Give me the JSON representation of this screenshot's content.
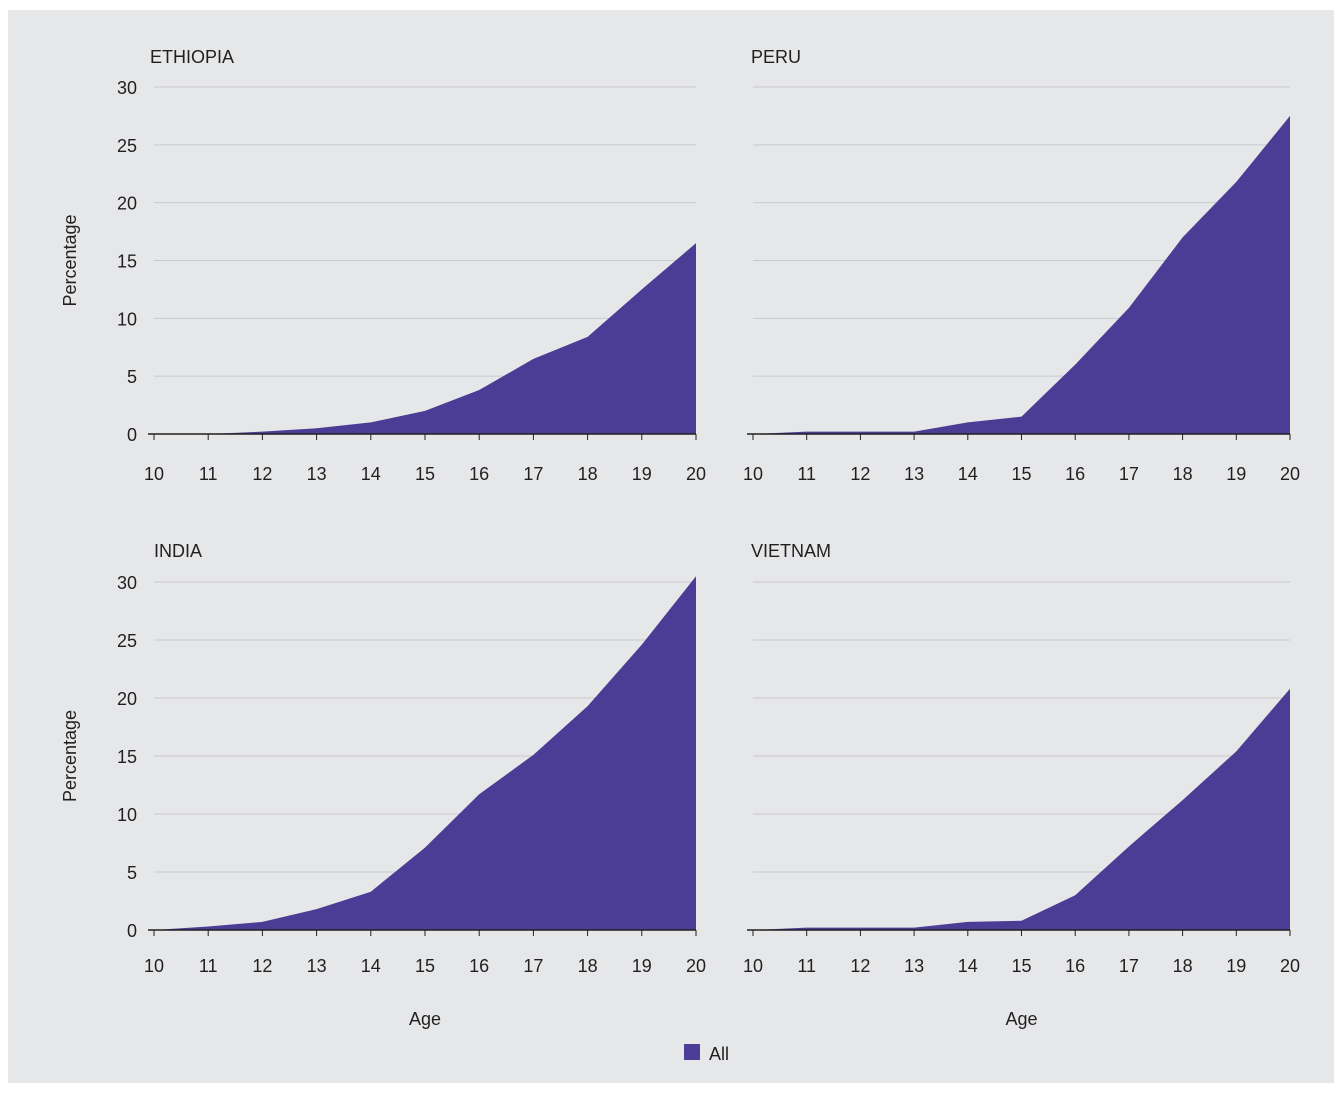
{
  "chart_data": [
    {
      "type": "area",
      "title": "ETHIOPIA",
      "xlabel": "",
      "ylabel": "Percentage",
      "x": [
        10,
        11,
        12,
        13,
        14,
        15,
        16,
        17,
        18,
        19,
        20
      ],
      "xlim": [
        10,
        20
      ],
      "ylim": [
        0,
        30
      ],
      "yticks": [
        0,
        5,
        10,
        15,
        20,
        25,
        30
      ],
      "grid": true,
      "series": [
        {
          "name": "All",
          "color": "#4b3c96",
          "values": [
            0.0,
            0.0,
            0.2,
            0.5,
            1.0,
            2.0,
            3.8,
            6.5,
            8.4,
            12.5,
            16.5
          ]
        }
      ]
    },
    {
      "type": "area",
      "title": "PERU",
      "xlabel": "",
      "ylabel": "",
      "x": [
        10,
        11,
        12,
        13,
        14,
        15,
        16,
        17,
        18,
        19,
        20
      ],
      "xlim": [
        10,
        20
      ],
      "ylim": [
        0,
        30
      ],
      "grid": true,
      "series": [
        {
          "name": "All",
          "color": "#4b3c96",
          "values": [
            0.0,
            0.2,
            0.2,
            0.2,
            1.0,
            1.5,
            6.0,
            10.9,
            17.0,
            21.8,
            27.5
          ]
        }
      ]
    },
    {
      "type": "area",
      "title": "INDIA",
      "xlabel": "Age",
      "ylabel": "Percentage",
      "x": [
        10,
        11,
        12,
        13,
        14,
        15,
        16,
        17,
        18,
        19,
        20
      ],
      "xlim": [
        10,
        20
      ],
      "ylim": [
        0,
        30
      ],
      "yticks": [
        0,
        5,
        10,
        15,
        20,
        25,
        30
      ],
      "grid": true,
      "series": [
        {
          "name": "All",
          "color": "#4b3c96",
          "values": [
            0.0,
            0.3,
            0.7,
            1.8,
            3.3,
            7.1,
            11.7,
            15.1,
            19.3,
            24.6,
            30.5
          ]
        }
      ]
    },
    {
      "type": "area",
      "title": "VIETNAM",
      "xlabel": "Age",
      "ylabel": "",
      "x": [
        10,
        11,
        12,
        13,
        14,
        15,
        16,
        17,
        18,
        19,
        20
      ],
      "xlim": [
        10,
        20
      ],
      "ylim": [
        0,
        30
      ],
      "grid": true,
      "series": [
        {
          "name": "All",
          "color": "#4b3c96",
          "values": [
            0.0,
            0.2,
            0.2,
            0.2,
            0.7,
            0.8,
            3.0,
            7.2,
            11.2,
            15.4,
            20.8
          ]
        }
      ]
    }
  ],
  "legend": {
    "label": "All",
    "color": "#4b3c96",
    "placement": "bottom-center"
  },
  "colors": {
    "background": "#e6e7e8",
    "gridline": "#c9cacd",
    "axis": "#231f20",
    "area": "#4b3c96"
  }
}
